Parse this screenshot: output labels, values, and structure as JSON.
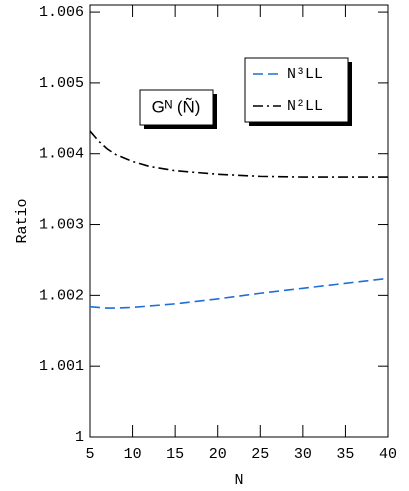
{
  "chart_data": {
    "type": "line",
    "annotation": "Gᴺ (Ñ)",
    "x_label": "N",
    "y_label": "Ratio",
    "x": [
      5,
      6,
      7,
      8,
      10,
      12,
      15,
      20,
      25,
      30,
      35,
      40
    ],
    "series": [
      {
        "name": "N³LL",
        "color": "#1f6fd6",
        "dash": "dashed",
        "values": [
          1.00184,
          1.00183,
          1.00182,
          1.00182,
          1.00183,
          1.00185,
          1.00188,
          1.00195,
          1.00203,
          1.0021,
          1.00217,
          1.00224
        ]
      },
      {
        "name": "N²LL",
        "color": "#000000",
        "dash": "dashdot",
        "values": [
          1.00432,
          1.00418,
          1.00407,
          1.00399,
          1.00389,
          1.00382,
          1.00376,
          1.00371,
          1.00368,
          1.00367,
          1.00367,
          1.00367
        ]
      }
    ],
    "xlim": [
      5,
      40
    ],
    "xticks": [
      5,
      10,
      15,
      20,
      25,
      30,
      35,
      40
    ],
    "ylim": [
      1,
      1.0061
    ],
    "yticks": [
      1,
      1.001,
      1.002,
      1.003,
      1.004,
      1.005,
      1.006
    ]
  }
}
